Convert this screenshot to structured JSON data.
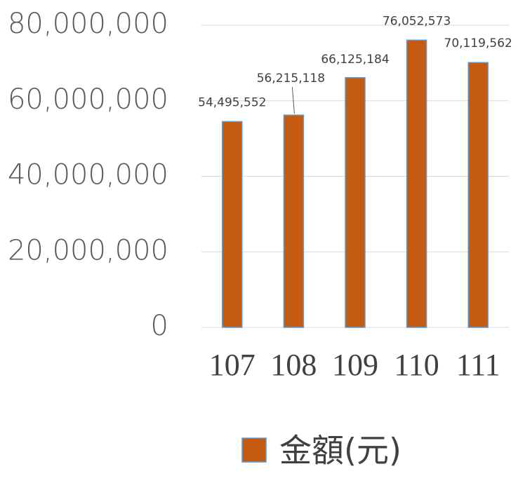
{
  "chart_data": {
    "type": "bar",
    "categories": [
      "107",
      "108",
      "109",
      "110",
      "111"
    ],
    "series": [
      {
        "name": "金額(元)",
        "color": "#c55a11",
        "values": [
          54495552,
          56215118,
          66125184,
          76052573,
          70119562
        ],
        "value_labels": [
          "54,495,552",
          "56,215,118",
          "66,125,184",
          "76,052,573",
          "70,119,562"
        ]
      }
    ],
    "ylim": [
      0,
      80000000
    ],
    "yticks": [
      {
        "value": 0,
        "label": "0"
      },
      {
        "value": 20000000,
        "label": "20,000,000"
      },
      {
        "value": 40000000,
        "label": "40,000,000"
      },
      {
        "value": 60000000,
        "label": "60,000,000"
      },
      {
        "value": 80000000,
        "label": "80,000,000"
      }
    ],
    "grid": true,
    "legend": "bottom"
  }
}
